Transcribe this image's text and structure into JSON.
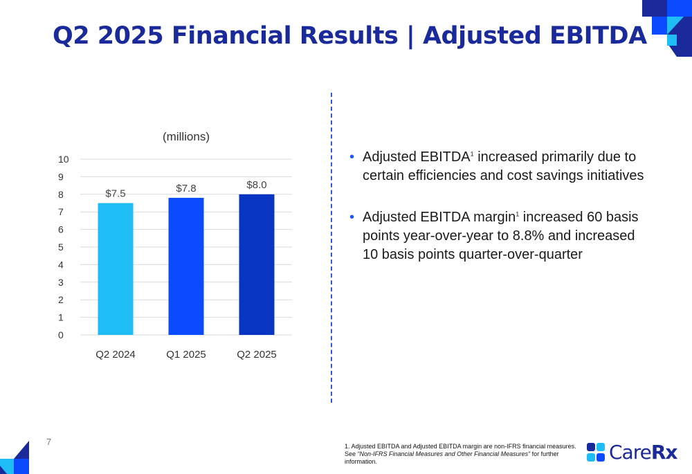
{
  "title": "Q2 2025 Financial Results | Adjusted EBITDA",
  "chart_data": {
    "type": "bar",
    "subtitle": "(millions)",
    "categories": [
      "Q2 2024",
      "Q1 2025",
      "Q2 2025"
    ],
    "values": [
      7.5,
      7.8,
      8.0
    ],
    "data_labels": [
      "$7.5",
      "$7.8",
      "$8.0"
    ],
    "bar_colors": [
      "#1ebdf5",
      "#0a4bff",
      "#0836c2"
    ],
    "ylim": [
      0,
      10
    ],
    "yticks": [
      "0",
      "1",
      "2",
      "3",
      "4",
      "5",
      "6",
      "7",
      "8",
      "9",
      "10"
    ],
    "grid": true,
    "legend": "none"
  },
  "bullets": [
    {
      "lead": "Adjusted EBITDA",
      "sup": "1",
      "rest": " increased primarily due to certain efficiencies and cost savings initiatives"
    },
    {
      "lead": "Adjusted EBITDA margin",
      "sup": "1",
      "rest": " increased 60 basis points year-over-year to 8.8% and increased 10 basis points quarter-over-quarter"
    }
  ],
  "page_number": "7",
  "footnote": {
    "line1": "1. Adjusted EBITDA and Adjusted EBITDA margin are non-IFRS financial measures.",
    "see": "See ",
    "italic": "“Non-IFRS Financial Measures and Other Financial Measures”",
    "rest": " for further information."
  },
  "logo": {
    "part1": "Care",
    "part2": "Rx"
  },
  "colors": {
    "navy": "#1a2a9a",
    "blue": "#1f57ff",
    "cyan": "#1ebdf5",
    "dark_blue": "#0836c2"
  },
  "icons": {
    "bullet": "•",
    "logo_mark": "carerx-logo-icon",
    "corner": "decorative-squares-icon"
  }
}
